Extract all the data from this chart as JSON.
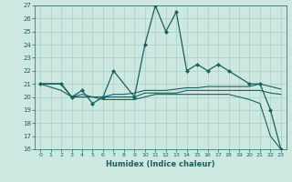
{
  "xlabel": "Humidex (Indice chaleur)",
  "bg_color": "#cce8e0",
  "grid_color": "#aacfc8",
  "line_color": "#1a6060",
  "xlim": [
    -0.5,
    23.5
  ],
  "ylim": [
    16,
    27
  ],
  "xticks": [
    0,
    1,
    2,
    3,
    4,
    5,
    6,
    7,
    8,
    9,
    10,
    11,
    12,
    13,
    14,
    15,
    16,
    17,
    18,
    19,
    20,
    21,
    22,
    23
  ],
  "yticks": [
    16,
    17,
    18,
    19,
    20,
    21,
    22,
    23,
    24,
    25,
    26,
    27
  ],
  "series": [
    {
      "x": [
        0,
        1,
        2,
        3,
        4,
        5,
        6,
        7,
        8,
        9,
        10,
        11,
        12,
        13,
        14,
        15,
        16,
        17,
        18,
        19,
        20,
        21,
        22,
        23
      ],
      "y": [
        21,
        21,
        21,
        20,
        20,
        20,
        20,
        20,
        20,
        20,
        20.3,
        20.3,
        20.3,
        20.3,
        20.5,
        20.5,
        20.5,
        20.5,
        20.5,
        20.5,
        20.5,
        20.5,
        20.3,
        20.2
      ],
      "marker": false,
      "lw": 0.8
    },
    {
      "x": [
        0,
        1,
        2,
        3,
        4,
        5,
        6,
        7,
        8,
        9,
        10,
        11,
        12,
        13,
        14,
        15,
        16,
        17,
        18,
        19,
        20,
        21,
        22,
        23
      ],
      "y": [
        21,
        21,
        21,
        20,
        20.2,
        20,
        20,
        20.2,
        20.2,
        20.3,
        20.5,
        20.5,
        20.5,
        20.6,
        20.7,
        20.7,
        20.8,
        20.8,
        20.8,
        20.8,
        20.8,
        21,
        20.8,
        20.6
      ],
      "marker": false,
      "lw": 0.8
    },
    {
      "x": [
        0,
        2,
        3,
        4,
        5,
        6,
        7,
        9,
        10,
        11,
        12,
        13,
        14,
        15,
        16,
        17,
        18,
        20,
        21,
        22,
        23
      ],
      "y": [
        21,
        21,
        20,
        20.5,
        19.5,
        20,
        22,
        20,
        24,
        27,
        25,
        26.5,
        22,
        22.5,
        22,
        22.5,
        22,
        21,
        21,
        19,
        16
      ],
      "marker": true,
      "lw": 0.9
    },
    {
      "x": [
        0,
        2,
        3,
        4,
        5,
        6,
        7,
        9,
        10,
        11,
        12,
        13,
        14,
        15,
        16,
        17,
        18,
        20,
        21,
        22,
        23
      ],
      "y": [
        21,
        20.5,
        20,
        20,
        20,
        19.8,
        19.8,
        19.8,
        20,
        20.2,
        20.2,
        20.2,
        20.2,
        20.2,
        20.2,
        20.2,
        20.2,
        19.8,
        19.5,
        17,
        16
      ],
      "marker": false,
      "lw": 0.8
    }
  ]
}
